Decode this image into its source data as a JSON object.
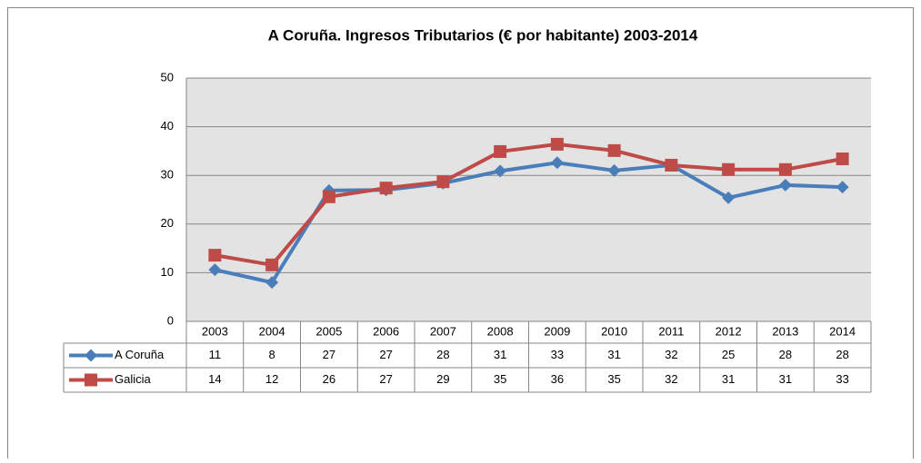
{
  "chart_data": {
    "type": "line",
    "title": "A Coruña. Ingresos Tributarios (€ por habitante) 2003-2014",
    "categories": [
      "2003",
      "2004",
      "2005",
      "2006",
      "2007",
      "2008",
      "2009",
      "2010",
      "2011",
      "2012",
      "2013",
      "2014"
    ],
    "series": [
      {
        "name": "A Coruña",
        "color": "#4a7ebb",
        "marker": "diamond",
        "values": [
          10.6,
          8.0,
          26.9,
          27.0,
          28.4,
          30.9,
          32.6,
          31.0,
          32.1,
          25.4,
          28.0,
          27.6
        ],
        "value_labels": [
          "11",
          "8",
          "27",
          "27",
          "28",
          "31",
          "33",
          "31",
          "32",
          "25",
          "28",
          "28"
        ]
      },
      {
        "name": "Galicia",
        "color": "#be4b48",
        "marker": "square",
        "values": [
          13.6,
          11.6,
          25.6,
          27.4,
          28.7,
          34.9,
          36.4,
          35.1,
          32.1,
          31.2,
          31.2,
          33.4
        ],
        "value_labels": [
          "14",
          "12",
          "26",
          "27",
          "29",
          "35",
          "36",
          "35",
          "32",
          "31",
          "31",
          "33"
        ]
      }
    ],
    "ylim": [
      0,
      50
    ],
    "yticks": [
      0,
      10,
      20,
      30,
      40,
      50
    ],
    "grid": true
  }
}
